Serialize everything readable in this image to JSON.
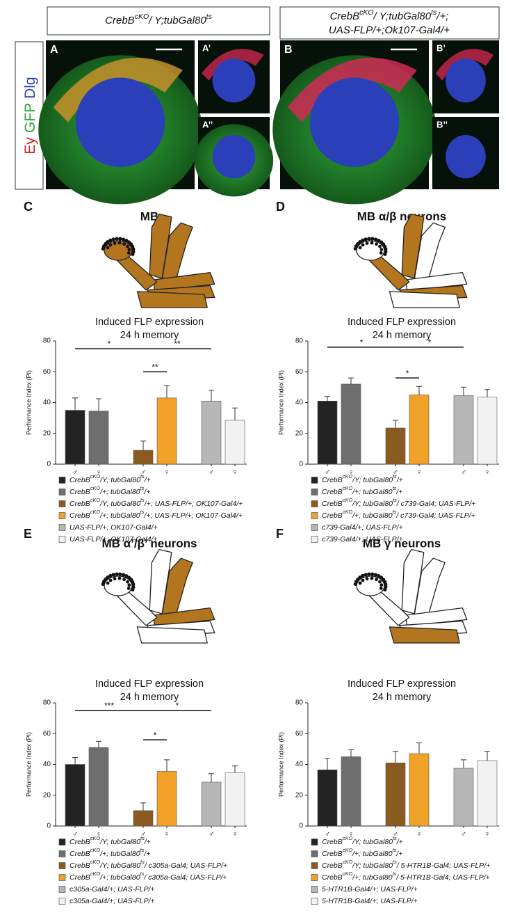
{
  "figure": {
    "headers": [
      [
        "CrebB",
        "cKO",
        "/ Y;tubGal80",
        "ts"
      ],
      [
        "CrebB",
        "cKO",
        "/ Y;tubGal80",
        "ts",
        "/+;"
      ],
      [
        "UAS-FLP/+;Ok107-Gal4/+"
      ]
    ],
    "stain_label": [
      "Ey",
      "GFP",
      "Dlg"
    ],
    "panels": [
      "A",
      "A’",
      "A’’",
      "B",
      "B’",
      "B’’"
    ]
  },
  "chart_data": [
    {
      "type": "bar",
      "panel": "C",
      "title": "MB",
      "subtitle": [
        "Induced FLP expression",
        "24 h memory"
      ],
      "ylabel": "Performance Index (PI)",
      "categories": [
        "♂",
        "♀",
        "♂",
        "♀",
        "♂",
        "♀"
      ],
      "values": [
        35,
        34.5,
        9,
        43,
        41,
        28.5
      ],
      "errors": [
        8,
        8,
        6,
        8,
        7,
        8
      ],
      "colors": [
        "#232323",
        "#6e6e6e",
        "#8a5a1f",
        "#f0a127",
        "#b7b7b7",
        "#f2f2f2"
      ],
      "legend": [
        [
          "CrebB",
          "cKO",
          "/Y; tubGal80",
          "ts",
          "/+"
        ],
        [
          "CrebB",
          "cKO",
          "/+; tubGal80",
          "ts",
          "/+"
        ],
        [
          "CrebB",
          "cKO",
          "/Y; tubGal80",
          "ts",
          "/+; UAS-FLP/+; OK107-Gal4/+"
        ],
        [
          "CrebB",
          "cKO",
          "/+; tubGal80",
          "ts",
          "/+; UAS-FLP/+; OK107-Gal4/+"
        ],
        [
          "UAS-FLP/+; OK107-Gal4/+"
        ],
        [
          "UAS-FLP/+; OK107-Gal4/+"
        ]
      ],
      "ylim": [
        0,
        80
      ],
      "yticks": [
        0,
        20,
        40,
        60,
        80
      ],
      "annotations": [
        {
          "from": 0,
          "to": 2,
          "y": 75,
          "label": "*"
        },
        {
          "from": 2,
          "to": 3,
          "y": 60,
          "label": "**"
        },
        {
          "from": 2,
          "to": 4,
          "y": 75,
          "label": "**"
        }
      ]
    },
    {
      "type": "bar",
      "panel": "D",
      "title": "MB α/β neurons",
      "subtitle": [
        "Induced FLP expression",
        "24 h memory"
      ],
      "ylabel": "Performance Index (PI)",
      "categories": [
        "♂",
        "♀",
        "♂",
        "♀",
        "♂",
        "♀"
      ],
      "values": [
        41,
        52,
        23.5,
        45,
        44.5,
        43.5
      ],
      "errors": [
        3,
        4,
        5,
        5.5,
        5.5,
        5
      ],
      "colors": [
        "#232323",
        "#6e6e6e",
        "#8a5a1f",
        "#f0a127",
        "#b7b7b7",
        "#f2f2f2"
      ],
      "legend": [
        [
          "CrebB",
          "cKO",
          "/Y; tubGal80",
          "ts",
          "/+"
        ],
        [
          "CrebB",
          "cKO",
          "/+; tubGal80",
          "ts",
          "/+"
        ],
        [
          "CrebB",
          "cKO",
          "/Y; tubGal80",
          "ts",
          "/ c739-Gal4; UAS-FLP/+"
        ],
        [
          "CrebB",
          "cKO",
          "/+; tubGal80",
          "ts",
          "/ c739-Gal4; UAS-FLP/+"
        ],
        [
          "c739-Gal4/+; UAS-FLP/+"
        ],
        [
          "c739-Gal4/+; UAS-FLP/+"
        ]
      ],
      "ylim": [
        0,
        80
      ],
      "yticks": [
        0,
        20,
        40,
        60,
        80
      ],
      "annotations": [
        {
          "from": 0,
          "to": 2,
          "y": 76,
          "label": "*"
        },
        {
          "from": 2,
          "to": 3,
          "y": 56,
          "label": "*"
        },
        {
          "from": 2,
          "to": 4,
          "y": 76,
          "label": "*"
        }
      ]
    },
    {
      "type": "bar",
      "panel": "E",
      "title": "MB α’/β’ neurons",
      "subtitle": [
        "Induced FLP expression",
        "24 h memory"
      ],
      "ylabel": "Performance Index (PI)",
      "categories": [
        "♂",
        "♀",
        "♂",
        "♀",
        "♂",
        "♀"
      ],
      "values": [
        40,
        51,
        10,
        35.5,
        28.5,
        34.5
      ],
      "errors": [
        4.5,
        4,
        5,
        7.5,
        5.5,
        4.5
      ],
      "colors": [
        "#232323",
        "#6e6e6e",
        "#8a5a1f",
        "#f0a127",
        "#b7b7b7",
        "#f2f2f2"
      ],
      "legend": [
        [
          "CrebB",
          "cKO",
          "/Y; tubGal80",
          "ts",
          "/+"
        ],
        [
          "CrebB",
          "cKO",
          "/+; tubGal80",
          "ts",
          "/+"
        ],
        [
          "CrebB",
          "cKO",
          "/Y; tubGal80",
          "ts",
          "/ c305a-Gal4; UAS-FLP/+"
        ],
        [
          "CrebB",
          "cKO",
          "/+; tubGal80",
          "ts",
          "/ c305a-Gal4; UAS-FLP/+"
        ],
        [
          "c305a-Gal4/+; UAS-FLP/+"
        ],
        [
          "c305a-Gal4/+; UAS-FLP/+"
        ]
      ],
      "ylim": [
        0,
        80
      ],
      "yticks": [
        0,
        20,
        40,
        60,
        80
      ],
      "annotations": [
        {
          "from": 0,
          "to": 2,
          "y": 75,
          "label": "***"
        },
        {
          "from": 2,
          "to": 3,
          "y": 56,
          "label": "*"
        },
        {
          "from": 2,
          "to": 4,
          "y": 75,
          "label": "*"
        }
      ]
    },
    {
      "type": "bar",
      "panel": "F",
      "title": "MB γ neurons",
      "subtitle": [
        "Induced FLP expression",
        "24 h memory"
      ],
      "ylabel": "Performance Index (PI)",
      "categories": [
        "♂",
        "♀",
        "♂",
        "♀",
        "♂",
        "♀"
      ],
      "values": [
        36.5,
        45,
        41,
        47,
        37.5,
        42.5
      ],
      "errors": [
        7.5,
        4.5,
        7.5,
        7,
        5.5,
        6
      ],
      "colors": [
        "#232323",
        "#6e6e6e",
        "#8a5a1f",
        "#f0a127",
        "#b7b7b7",
        "#f2f2f2"
      ],
      "legend": [
        [
          "CrebB",
          "cKO",
          "/Y; tubGal80",
          "ts",
          "/+"
        ],
        [
          "CrebB",
          "cKO",
          "/+; tubGal80",
          "ts",
          "/+"
        ],
        [
          "CrebB",
          "cKO",
          "/Y; tubGal80",
          "ts",
          "/ 5-HTR1B-Gal4; UAS-FLP/+"
        ],
        [
          "CrebB",
          "cKO",
          "/+; tubGal80",
          "ts",
          "/ 5-HTR1B-Gal4; UAS-FLP/+"
        ],
        [
          "5-HTR1B-Gal4/+; UAS-FLP/+"
        ],
        [
          "5-HTR1B-Gal4/+; UAS-FLP/+"
        ]
      ],
      "ylim": [
        0,
        80
      ],
      "yticks": [
        0,
        20,
        40,
        60,
        80
      ],
      "annotations": []
    }
  ]
}
